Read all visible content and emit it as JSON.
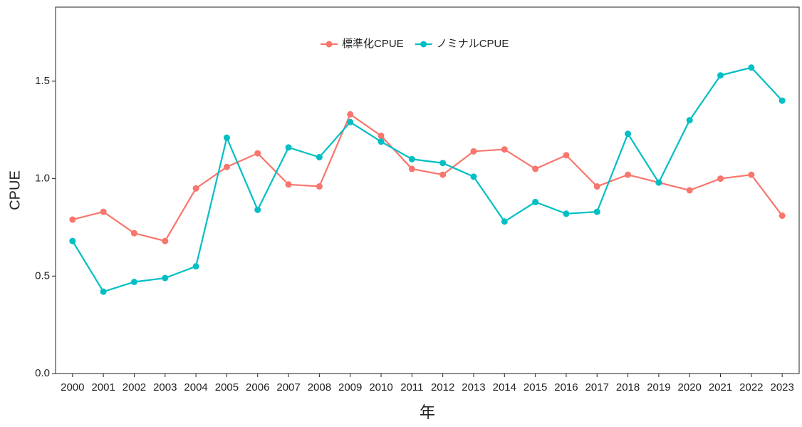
{
  "chart_data": {
    "type": "line",
    "x_label": "年",
    "y_label": "CPUE",
    "x": [
      2000,
      2001,
      2002,
      2003,
      2004,
      2005,
      2006,
      2007,
      2008,
      2009,
      2010,
      2011,
      2012,
      2013,
      2014,
      2015,
      2016,
      2017,
      2018,
      2019,
      2020,
      2021,
      2022,
      2023
    ],
    "series": [
      {
        "name": "標準化CPUE",
        "color": "#F8766D",
        "values": [
          0.79,
          0.83,
          0.72,
          0.68,
          0.95,
          1.06,
          1.13,
          0.97,
          0.96,
          1.33,
          1.22,
          1.05,
          1.02,
          1.14,
          1.15,
          1.05,
          1.12,
          0.96,
          1.02,
          0.98,
          0.94,
          1.0,
          1.02,
          0.81
        ]
      },
      {
        "name": "ノミナルCPUE",
        "color": "#00BFC4",
        "values": [
          0.68,
          0.42,
          0.47,
          0.49,
          0.55,
          1.21,
          0.84,
          1.16,
          1.11,
          1.29,
          1.19,
          1.1,
          1.08,
          1.01,
          0.78,
          0.88,
          0.82,
          0.83,
          1.23,
          0.98,
          1.3,
          1.53,
          1.57,
          1.4
        ]
      }
    ],
    "xlim": [
      1999.45,
      2023.55
    ],
    "xticks": [
      2000,
      2001,
      2002,
      2003,
      2004,
      2005,
      2006,
      2007,
      2008,
      2009,
      2010,
      2011,
      2012,
      2013,
      2014,
      2015,
      2016,
      2017,
      2018,
      2019,
      2020,
      2021,
      2022,
      2023
    ],
    "ylim": [
      0,
      1.88
    ],
    "yticks": [
      {
        "value": 0,
        "label": "0.0"
      },
      0.5,
      {
        "value": 1,
        "label": "1.0"
      },
      1.5
    ],
    "legend": "top"
  }
}
